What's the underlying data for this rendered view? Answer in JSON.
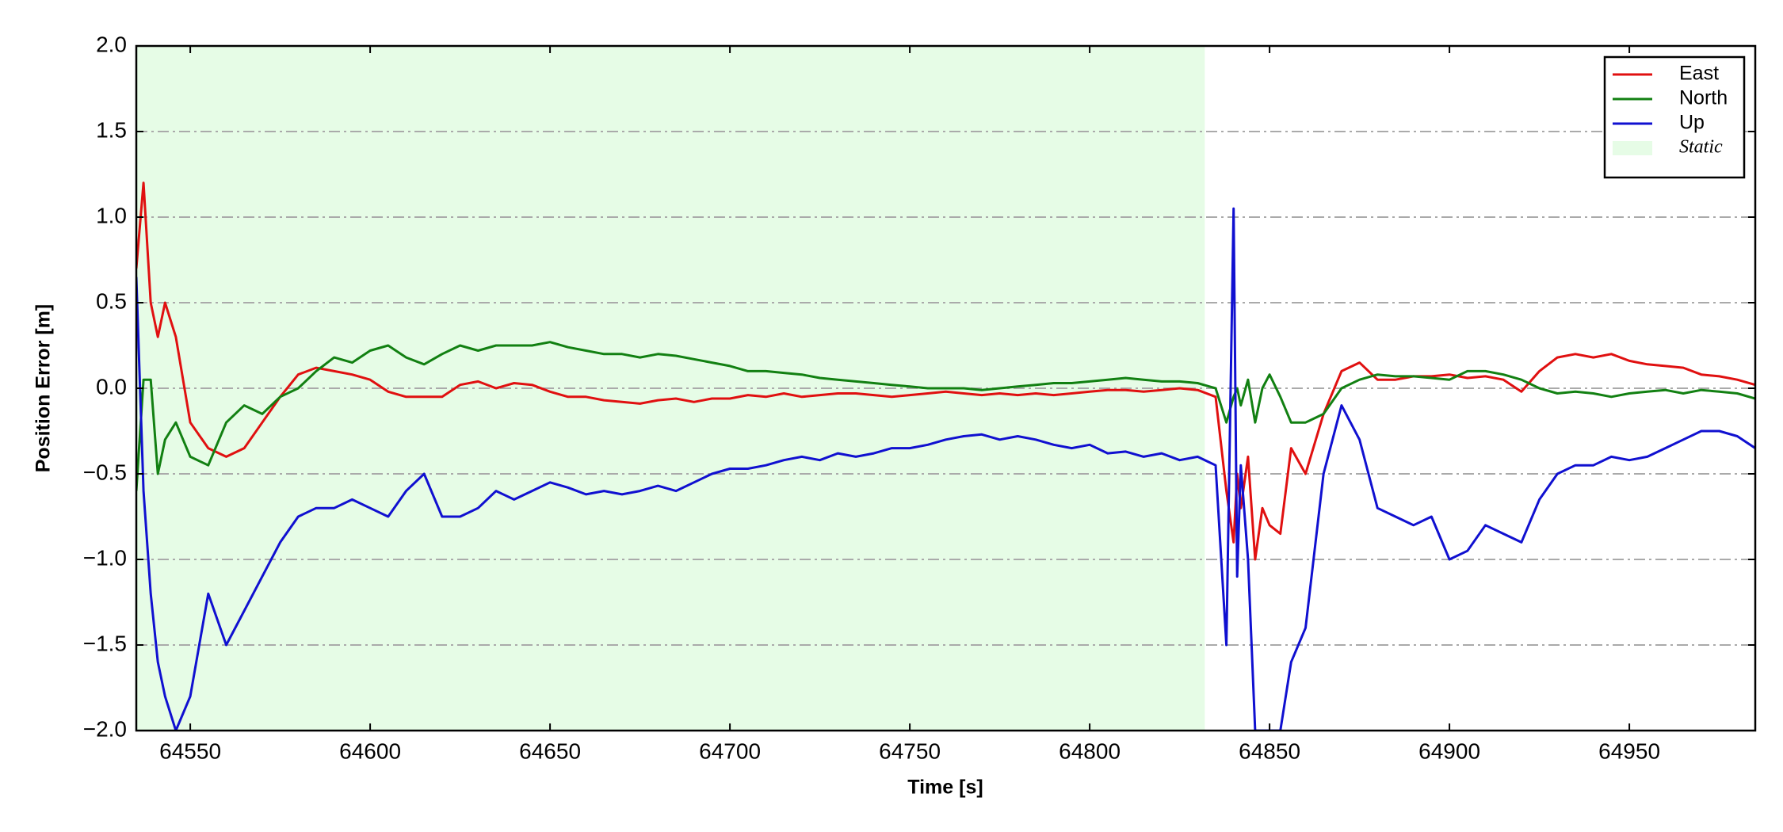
{
  "chart_data": {
    "type": "line",
    "xlabel": "Time [s]",
    "ylabel": "Position Error [m]",
    "xlim": [
      64535,
      64985
    ],
    "ylim": [
      -2,
      2
    ],
    "xticks": [
      64550,
      64600,
      64650,
      64700,
      64750,
      64800,
      64850,
      64900,
      64950
    ],
    "yticks": [
      {
        "value": -2,
        "label": "−2.0"
      },
      {
        "value": -1.5,
        "label": "−1.5"
      },
      {
        "value": -1,
        "label": "−1.0"
      },
      {
        "value": -0.5,
        "label": "−0.5"
      },
      {
        "value": 0,
        "label": "0.0"
      },
      {
        "value": 0.5,
        "label": "0.5"
      },
      {
        "value": 1,
        "label": "1.0"
      },
      {
        "value": 1.5,
        "label": "1.5"
      },
      {
        "value": 2,
        "label": "2.0"
      }
    ],
    "grid": true,
    "legend": "upper right",
    "shade": {
      "name": "Static",
      "color": "#e6fce6",
      "x": [
        64535,
        64832
      ]
    },
    "x": [
      64535,
      64537,
      64539,
      64541,
      64543,
      64546,
      64550,
      64555,
      64560,
      64565,
      64570,
      64575,
      64580,
      64585,
      64590,
      64595,
      64600,
      64605,
      64610,
      64615,
      64620,
      64625,
      64630,
      64635,
      64640,
      64645,
      64650,
      64655,
      64660,
      64665,
      64670,
      64675,
      64680,
      64685,
      64690,
      64695,
      64700,
      64705,
      64710,
      64715,
      64720,
      64725,
      64730,
      64735,
      64740,
      64745,
      64750,
      64755,
      64760,
      64765,
      64770,
      64775,
      64780,
      64785,
      64790,
      64795,
      64800,
      64805,
      64810,
      64815,
      64820,
      64825,
      64830,
      64835,
      64838,
      64840,
      64841,
      64842,
      64844,
      64846,
      64848,
      64850,
      64853,
      64856,
      64860,
      64865,
      64870,
      64875,
      64880,
      64885,
      64890,
      64895,
      64900,
      64905,
      64910,
      64915,
      64920,
      64925,
      64930,
      64935,
      64940,
      64945,
      64950,
      64955,
      64960,
      64965,
      64970,
      64975,
      64980,
      64985
    ],
    "series": [
      {
        "name": "East",
        "color": "#e01010",
        "values": [
          0.7,
          1.2,
          0.5,
          0.3,
          0.5,
          0.3,
          -0.2,
          -0.35,
          -0.4,
          -0.35,
          -0.2,
          -0.05,
          0.08,
          0.12,
          0.1,
          0.08,
          0.05,
          -0.02,
          -0.05,
          -0.05,
          -0.05,
          0.02,
          0.04,
          0.0,
          0.03,
          0.02,
          -0.02,
          -0.05,
          -0.05,
          -0.07,
          -0.08,
          -0.09,
          -0.07,
          -0.06,
          -0.08,
          -0.06,
          -0.06,
          -0.04,
          -0.05,
          -0.03,
          -0.05,
          -0.04,
          -0.03,
          -0.03,
          -0.04,
          -0.05,
          -0.04,
          -0.03,
          -0.02,
          -0.03,
          -0.04,
          -0.03,
          -0.04,
          -0.03,
          -0.04,
          -0.03,
          -0.02,
          -0.01,
          -0.01,
          -0.02,
          -0.01,
          0.0,
          -0.01,
          -0.05,
          -0.6,
          -0.9,
          -0.5,
          -0.7,
          -0.4,
          -1.0,
          -0.7,
          -0.8,
          -0.85,
          -0.35,
          -0.5,
          -0.15,
          0.1,
          0.15,
          0.05,
          0.05,
          0.07,
          0.07,
          0.08,
          0.06,
          0.07,
          0.05,
          -0.02,
          0.1,
          0.18,
          0.2,
          0.18,
          0.2,
          0.16,
          0.14,
          0.13,
          0.12,
          0.08,
          0.07,
          0.05,
          0.02
        ]
      },
      {
        "name": "North",
        "color": "#128012",
        "values": [
          -0.6,
          0.05,
          0.05,
          -0.5,
          -0.3,
          -0.2,
          -0.4,
          -0.45,
          -0.2,
          -0.1,
          -0.15,
          -0.05,
          0.0,
          0.1,
          0.18,
          0.15,
          0.22,
          0.25,
          0.18,
          0.14,
          0.2,
          0.25,
          0.22,
          0.25,
          0.25,
          0.25,
          0.27,
          0.24,
          0.22,
          0.2,
          0.2,
          0.18,
          0.2,
          0.19,
          0.17,
          0.15,
          0.13,
          0.1,
          0.1,
          0.09,
          0.08,
          0.06,
          0.05,
          0.04,
          0.03,
          0.02,
          0.01,
          0.0,
          0.0,
          0.0,
          -0.01,
          0.0,
          0.01,
          0.02,
          0.03,
          0.03,
          0.04,
          0.05,
          0.06,
          0.05,
          0.04,
          0.04,
          0.03,
          0.0,
          -0.2,
          -0.05,
          0.0,
          -0.1,
          0.05,
          -0.2,
          0.0,
          0.08,
          -0.05,
          -0.2,
          -0.2,
          -0.15,
          0.0,
          0.05,
          0.08,
          0.07,
          0.07,
          0.06,
          0.05,
          0.1,
          0.1,
          0.08,
          0.05,
          0.0,
          -0.03,
          -0.02,
          -0.03,
          -0.05,
          -0.03,
          -0.02,
          -0.01,
          -0.03,
          -0.01,
          -0.02,
          -0.03,
          -0.06
        ]
      },
      {
        "name": "Up",
        "color": "#1010d0",
        "values": [
          0.65,
          -0.6,
          -1.2,
          -1.6,
          -1.8,
          -2.0,
          -1.8,
          -1.2,
          -1.5,
          -1.3,
          -1.1,
          -0.9,
          -0.75,
          -0.7,
          -0.7,
          -0.65,
          -0.7,
          -0.75,
          -0.6,
          -0.5,
          -0.75,
          -0.75,
          -0.7,
          -0.6,
          -0.65,
          -0.6,
          -0.55,
          -0.58,
          -0.62,
          -0.6,
          -0.62,
          -0.6,
          -0.57,
          -0.6,
          -0.55,
          -0.5,
          -0.47,
          -0.47,
          -0.45,
          -0.42,
          -0.4,
          -0.42,
          -0.38,
          -0.4,
          -0.38,
          -0.35,
          -0.35,
          -0.33,
          -0.3,
          -0.28,
          -0.27,
          -0.3,
          -0.28,
          -0.3,
          -0.33,
          -0.35,
          -0.33,
          -0.38,
          -0.37,
          -0.4,
          -0.38,
          -0.42,
          -0.4,
          -0.45,
          -1.5,
          1.05,
          -1.1,
          -0.45,
          -1.0,
          -2.0,
          -2.0,
          -2.0,
          -2.0,
          -1.6,
          -1.4,
          -0.5,
          -0.1,
          -0.3,
          -0.7,
          -0.75,
          -0.8,
          -0.75,
          -1.0,
          -0.95,
          -0.8,
          -0.85,
          -0.9,
          -0.65,
          -0.5,
          -0.45,
          -0.45,
          -0.4,
          -0.42,
          -0.4,
          -0.35,
          -0.3,
          -0.25,
          -0.25,
          -0.28,
          -0.35
        ]
      }
    ]
  }
}
